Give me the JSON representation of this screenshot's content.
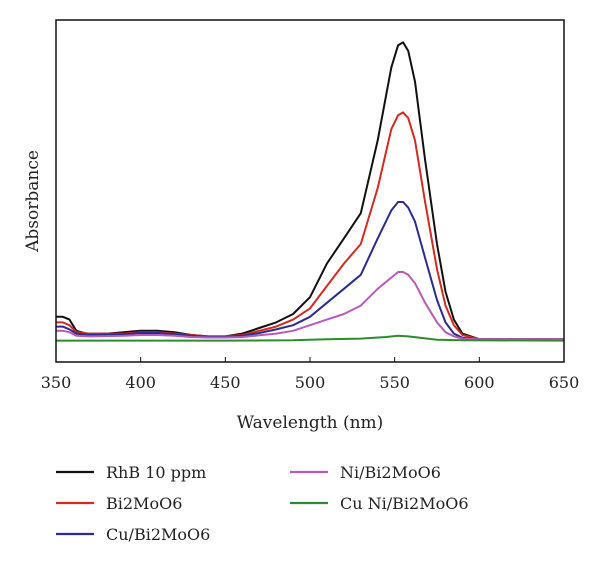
{
  "chart_data": {
    "type": "line",
    "title": "",
    "xlabel": "Wavelength (nm)",
    "ylabel": "Absorbance",
    "xlim": [
      350,
      650
    ],
    "ylim": [
      0,
      1.15
    ],
    "xticks": [
      350,
      400,
      450,
      500,
      550,
      600,
      650
    ],
    "yticks": [],
    "grid": false,
    "legend_position": "bottom",
    "series": [
      {
        "name": "RhB 10 ppm",
        "color": "#111111",
        "points": [
          [
            350,
            0.09
          ],
          [
            354,
            0.09
          ],
          [
            358,
            0.08
          ],
          [
            362,
            0.04
          ],
          [
            368,
            0.03
          ],
          [
            380,
            0.03
          ],
          [
            390,
            0.035
          ],
          [
            400,
            0.04
          ],
          [
            410,
            0.04
          ],
          [
            420,
            0.035
          ],
          [
            430,
            0.025
          ],
          [
            440,
            0.02
          ],
          [
            450,
            0.02
          ],
          [
            460,
            0.03
          ],
          [
            470,
            0.05
          ],
          [
            480,
            0.07
          ],
          [
            490,
            0.1
          ],
          [
            500,
            0.16
          ],
          [
            510,
            0.28
          ],
          [
            520,
            0.37
          ],
          [
            530,
            0.46
          ],
          [
            540,
            0.72
          ],
          [
            548,
            0.98
          ],
          [
            552,
            1.06
          ],
          [
            555,
            1.07
          ],
          [
            558,
            1.04
          ],
          [
            562,
            0.93
          ],
          [
            568,
            0.65
          ],
          [
            575,
            0.35
          ],
          [
            580,
            0.18
          ],
          [
            585,
            0.08
          ],
          [
            590,
            0.03
          ],
          [
            600,
            0.01
          ],
          [
            650,
            0.01
          ]
        ]
      },
      {
        "name": "Bi2MoO6",
        "color": "#d42a1f",
        "points": [
          [
            350,
            0.07
          ],
          [
            354,
            0.07
          ],
          [
            358,
            0.06
          ],
          [
            362,
            0.035
          ],
          [
            370,
            0.03
          ],
          [
            390,
            0.03
          ],
          [
            400,
            0.035
          ],
          [
            410,
            0.035
          ],
          [
            420,
            0.03
          ],
          [
            430,
            0.025
          ],
          [
            440,
            0.02
          ],
          [
            450,
            0.02
          ],
          [
            460,
            0.025
          ],
          [
            470,
            0.04
          ],
          [
            480,
            0.055
          ],
          [
            490,
            0.08
          ],
          [
            500,
            0.12
          ],
          [
            510,
            0.2
          ],
          [
            520,
            0.28
          ],
          [
            530,
            0.35
          ],
          [
            540,
            0.55
          ],
          [
            548,
            0.76
          ],
          [
            552,
            0.81
          ],
          [
            555,
            0.82
          ],
          [
            558,
            0.8
          ],
          [
            562,
            0.72
          ],
          [
            568,
            0.5
          ],
          [
            575,
            0.26
          ],
          [
            580,
            0.13
          ],
          [
            585,
            0.06
          ],
          [
            590,
            0.025
          ],
          [
            600,
            0.01
          ],
          [
            650,
            0.01
          ]
        ]
      },
      {
        "name": "Cu/Bi2MoO6",
        "color": "#2b2b8f",
        "points": [
          [
            350,
            0.055
          ],
          [
            354,
            0.055
          ],
          [
            358,
            0.045
          ],
          [
            362,
            0.03
          ],
          [
            370,
            0.025
          ],
          [
            390,
            0.028
          ],
          [
            400,
            0.032
          ],
          [
            410,
            0.032
          ],
          [
            420,
            0.028
          ],
          [
            430,
            0.022
          ],
          [
            440,
            0.018
          ],
          [
            450,
            0.018
          ],
          [
            460,
            0.022
          ],
          [
            470,
            0.032
          ],
          [
            480,
            0.045
          ],
          [
            490,
            0.06
          ],
          [
            500,
            0.09
          ],
          [
            510,
            0.14
          ],
          [
            520,
            0.19
          ],
          [
            530,
            0.24
          ],
          [
            540,
            0.37
          ],
          [
            548,
            0.47
          ],
          [
            552,
            0.5
          ],
          [
            555,
            0.5
          ],
          [
            558,
            0.48
          ],
          [
            562,
            0.43
          ],
          [
            568,
            0.3
          ],
          [
            575,
            0.15
          ],
          [
            580,
            0.07
          ],
          [
            585,
            0.03
          ],
          [
            590,
            0.015
          ],
          [
            600,
            0.01
          ],
          [
            650,
            0.01
          ]
        ]
      },
      {
        "name": "Ni/Bi2MoO6",
        "color": "#b95ab8",
        "points": [
          [
            350,
            0.04
          ],
          [
            354,
            0.04
          ],
          [
            358,
            0.035
          ],
          [
            362,
            0.022
          ],
          [
            370,
            0.02
          ],
          [
            390,
            0.022
          ],
          [
            400,
            0.025
          ],
          [
            410,
            0.025
          ],
          [
            420,
            0.022
          ],
          [
            430,
            0.018
          ],
          [
            440,
            0.016
          ],
          [
            450,
            0.016
          ],
          [
            460,
            0.018
          ],
          [
            470,
            0.024
          ],
          [
            480,
            0.03
          ],
          [
            490,
            0.04
          ],
          [
            500,
            0.06
          ],
          [
            510,
            0.08
          ],
          [
            520,
            0.1
          ],
          [
            530,
            0.13
          ],
          [
            540,
            0.19
          ],
          [
            548,
            0.23
          ],
          [
            552,
            0.25
          ],
          [
            555,
            0.25
          ],
          [
            558,
            0.24
          ],
          [
            562,
            0.21
          ],
          [
            568,
            0.14
          ],
          [
            575,
            0.07
          ],
          [
            580,
            0.035
          ],
          [
            585,
            0.02
          ],
          [
            590,
            0.012
          ],
          [
            600,
            0.01
          ],
          [
            650,
            0.01
          ]
        ]
      },
      {
        "name": "Cu Ni/Bi2MoO6",
        "color": "#2e8b2e",
        "points": [
          [
            350,
            0.005
          ],
          [
            400,
            0.005
          ],
          [
            450,
            0.005
          ],
          [
            490,
            0.006
          ],
          [
            510,
            0.01
          ],
          [
            530,
            0.012
          ],
          [
            545,
            0.018
          ],
          [
            552,
            0.022
          ],
          [
            558,
            0.02
          ],
          [
            565,
            0.015
          ],
          [
            575,
            0.008
          ],
          [
            590,
            0.006
          ],
          [
            650,
            0.005
          ]
        ]
      }
    ]
  }
}
